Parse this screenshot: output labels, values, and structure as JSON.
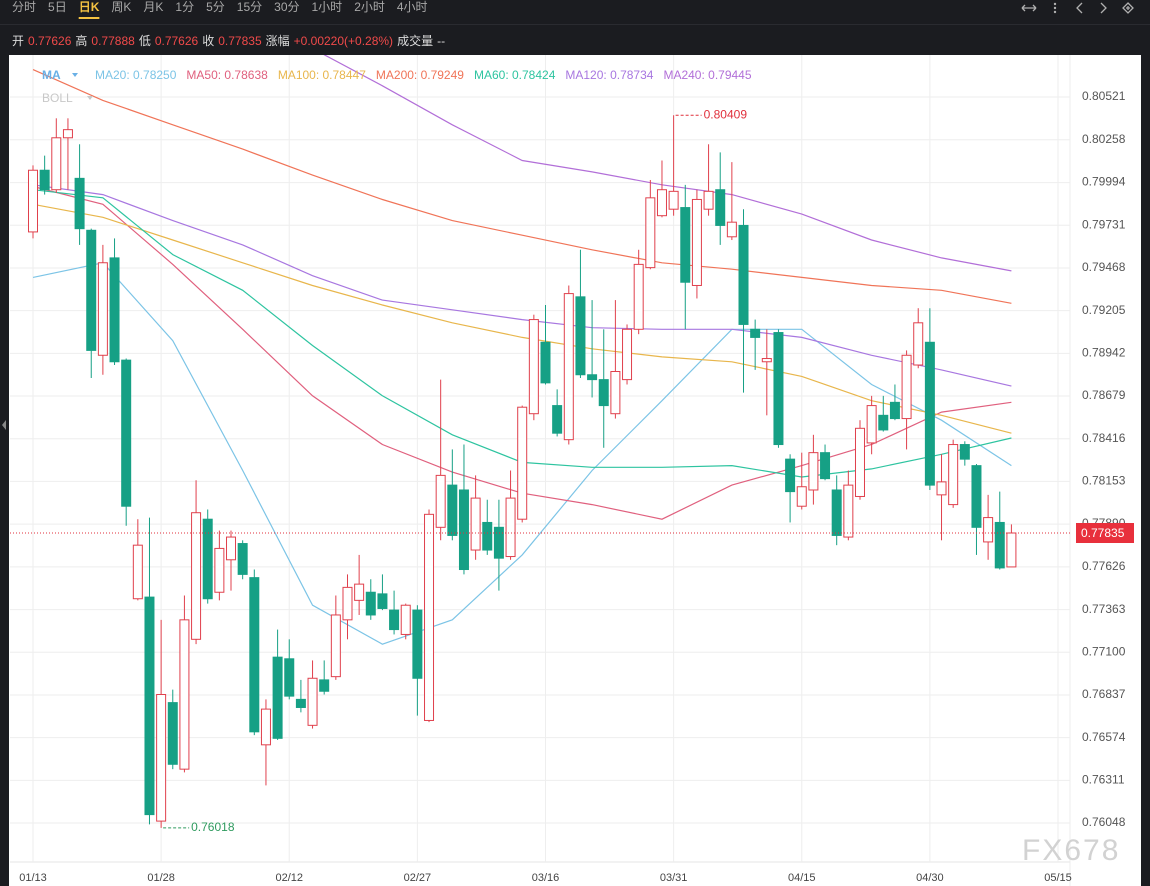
{
  "toolbar": [
    "分时",
    "5日",
    "日K",
    "周K",
    "月K",
    "1分",
    "5分",
    "15分",
    "30分",
    "1小时",
    "2小时",
    "4小时"
  ],
  "selected": "日K",
  "quote_labels": {
    "open": "开",
    "high": "高",
    "low": "低",
    "close": "收",
    "change": "涨幅",
    "volume": "成交量"
  },
  "change": "+0.00220(+0.28%)",
  "volume": "--",
  "indicators": [
    "MA",
    "BOLL"
  ],
  "watermark": "FX678",
  "chart_data": {
    "type": "candlestick",
    "up_color": "#e0404c",
    "down_color": "#16a085",
    "grid": true,
    "categories": [
      "01/13",
      null,
      null,
      null,
      null,
      null,
      null,
      null,
      null,
      null,
      null,
      "01/28",
      null,
      null,
      null,
      null,
      null,
      null,
      null,
      null,
      null,
      null,
      "02/12",
      null,
      null,
      null,
      null,
      null,
      null,
      null,
      null,
      null,
      null,
      "02/27",
      null,
      null,
      null,
      null,
      null,
      null,
      null,
      null,
      null,
      null,
      "03/16",
      null,
      null,
      null,
      null,
      null,
      null,
      null,
      null,
      null,
      null,
      "03/31",
      null,
      null,
      null,
      null,
      null,
      null,
      null,
      null,
      null,
      null,
      "04/15",
      null,
      null,
      null,
      null,
      null,
      null,
      null,
      null,
      null,
      null,
      "04/30",
      null,
      null,
      null,
      null,
      null,
      null,
      null,
      null,
      null,
      null,
      "05/15"
    ],
    "open": [
      0.7969,
      0.8007,
      0.7995,
      0.8027,
      0.8002,
      0.797,
      0.7893,
      0.7953,
      0.789,
      0.7743,
      0.7744,
      0.7606,
      0.7679,
      0.7638,
      0.7718,
      0.7792,
      0.7747,
      0.7767,
      0.7777,
      0.7756,
      0.7653,
      0.7707,
      0.7706,
      0.7681,
      0.7665,
      0.7693,
      0.7695,
      0.773,
      0.7742,
      0.7747,
      0.7746,
      0.7736,
      0.7721,
      0.7736,
      0.7668,
      0.7787,
      0.7813,
      0.781,
      0.7773,
      0.779,
      0.7787,
      0.7769,
      0.7792,
      0.7857,
      0.7901,
      0.7862,
      0.7841,
      0.7929,
      0.7881,
      0.7878,
      0.7857,
      0.7878,
      0.7909,
      0.7947,
      0.7979,
      0.7983,
      0.7984,
      0.7936,
      0.7983,
      0.7995,
      0.7966,
      0.7973,
      0.7909,
      0.7889,
      0.7907,
      0.7829,
      0.78,
      0.781,
      0.7833,
      0.781,
      0.7781,
      0.7806,
      0.7839,
      0.7856,
      0.7864,
      0.7854,
      0.7887,
      0.7901,
      0.7807,
      0.7801,
      0.7838,
      0.7825,
      0.7778,
      0.779,
      0.77626,
      null,
      null,
      null,
      null
    ],
    "high": [
      0.801,
      0.8016,
      0.8039,
      0.8039,
      0.8023,
      0.7971,
      0.7961,
      0.7965,
      0.7891,
      0.7792,
      0.7793,
      0.773,
      0.7687,
      0.7745,
      0.7816,
      0.7798,
      0.7785,
      0.7785,
      0.7779,
      0.7761,
      0.7681,
      0.7724,
      0.7718,
      0.7693,
      0.7705,
      0.7705,
      0.7745,
      0.7758,
      0.777,
      0.7755,
      0.7758,
      0.7748,
      0.774,
      0.7739,
      0.7798,
      0.7878,
      0.7835,
      0.7838,
      0.7819,
      0.7804,
      0.7804,
      0.7822,
      0.7862,
      0.7918,
      0.7924,
      0.7872,
      0.7936,
      0.7958,
      0.7927,
      0.7909,
      0.7927,
      0.7912,
      0.7958,
      0.8001,
      0.8013,
      0.80409,
      0.7998,
      0.7995,
      0.8023,
      0.8018,
      0.8012,
      0.7983,
      0.7915,
      0.7909,
      0.7909,
      0.7832,
      0.7833,
      0.7844,
      0.7838,
      0.7819,
      0.7822,
      0.7853,
      0.7868,
      0.7868,
      0.7875,
      0.7896,
      0.7922,
      0.7922,
      0.7832,
      0.7841,
      0.784,
      0.7826,
      0.7807,
      0.7809,
      0.77888,
      null,
      null,
      null,
      null
    ],
    "low": [
      0.7965,
      0.7992,
      0.7993,
      0.7995,
      0.7961,
      0.7879,
      0.7881,
      0.7887,
      0.7788,
      0.7742,
      0.7604,
      0.76018,
      0.7638,
      0.7636,
      0.7715,
      0.774,
      0.7742,
      0.7748,
      0.7755,
      0.7659,
      0.7628,
      0.7656,
      0.7681,
      0.7673,
      0.7663,
      0.7684,
      0.7693,
      0.7718,
      0.7733,
      0.773,
      0.7736,
      0.7721,
      0.7718,
      0.7671,
      0.7667,
      0.7779,
      0.7779,
      0.7758,
      0.7767,
      0.777,
      0.7748,
      0.7767,
      0.779,
      0.7853,
      0.7875,
      0.7843,
      0.7838,
      0.7879,
      0.7867,
      0.7836,
      0.7854,
      0.7875,
      0.7906,
      0.7946,
      0.7978,
      0.7979,
      0.7909,
      0.7928,
      0.7979,
      0.7961,
      0.7964,
      0.787,
      0.7884,
      0.7856,
      0.7836,
      0.779,
      0.7798,
      0.7801,
      0.7816,
      0.7776,
      0.7779,
      0.7804,
      0.7832,
      0.7846,
      0.7853,
      0.7835,
      0.7885,
      0.781,
      0.7779,
      0.7799,
      0.7825,
      0.777,
      0.7767,
      0.7761,
      0.77626,
      null,
      null,
      null,
      null
    ],
    "close": [
      0.8007,
      0.7995,
      0.8027,
      0.8032,
      0.7971,
      0.7896,
      0.795,
      0.7889,
      0.78,
      0.7776,
      0.761,
      0.7684,
      0.7641,
      0.773,
      0.7796,
      0.7743,
      0.7774,
      0.7781,
      0.7758,
      0.7661,
      0.7675,
      0.7657,
      0.7683,
      0.7676,
      0.7694,
      0.7686,
      0.7733,
      0.775,
      0.7752,
      0.7733,
      0.7737,
      0.7724,
      0.7739,
      0.7694,
      0.7795,
      0.7819,
      0.7782,
      0.7761,
      0.7805,
      0.7773,
      0.7768,
      0.7805,
      0.7861,
      0.7915,
      0.7876,
      0.7845,
      0.7931,
      0.7881,
      0.7878,
      0.7862,
      0.7883,
      0.7909,
      0.7949,
      0.799,
      0.7995,
      0.7994,
      0.7938,
      0.7989,
      0.7994,
      0.7973,
      0.7975,
      0.7912,
      0.7904,
      0.7891,
      0.7838,
      0.7809,
      0.7812,
      0.7833,
      0.7817,
      0.7782,
      0.7813,
      0.7848,
      0.7862,
      0.7847,
      0.7854,
      0.7893,
      0.7913,
      0.7813,
      0.7815,
      0.7838,
      0.7829,
      0.7787,
      0.7793,
      0.7762,
      0.77835,
      null,
      null,
      null,
      null
    ],
    "series": [
      {
        "name": "MA20: 0.78250",
        "color": "#7cc4e6",
        "x": [
          0,
          6,
          12,
          18,
          24,
          30,
          36,
          42,
          48,
          54,
          60,
          66,
          72,
          78,
          84
        ],
        "values": [
          0.7941,
          0.795,
          0.7902,
          0.7822,
          0.7739,
          0.7715,
          0.773,
          0.777,
          0.7822,
          0.7865,
          0.7909,
          0.7909,
          0.7875,
          0.7853,
          0.7825
        ]
      },
      {
        "name": "MA50: 0.78638",
        "color": "#e0607e",
        "x": [
          0,
          6,
          12,
          18,
          24,
          30,
          36,
          42,
          48,
          54,
          60,
          66,
          72,
          78,
          84
        ],
        "values": [
          0.7997,
          0.7986,
          0.7949,
          0.7909,
          0.7868,
          0.7838,
          0.7821,
          0.7808,
          0.7801,
          0.7792,
          0.7813,
          0.7825,
          0.7838,
          0.7858,
          0.7864
        ]
      },
      {
        "name": "MA100: 0.78447",
        "color": "#e8b64c",
        "x": [
          0,
          6,
          12,
          18,
          24,
          30,
          36,
          42,
          48,
          54,
          60,
          66,
          72,
          78,
          84
        ],
        "values": [
          0.7986,
          0.7978,
          0.7964,
          0.795,
          0.7936,
          0.7924,
          0.7913,
          0.7904,
          0.7897,
          0.7892,
          0.7889,
          0.788,
          0.7865,
          0.7856,
          0.7845
        ]
      },
      {
        "name": "MA200: 0.79249",
        "color": "#f07458",
        "x": [
          0,
          6,
          12,
          18,
          24,
          30,
          36,
          42,
          48,
          54,
          60,
          66,
          72,
          78,
          84
        ],
        "values": [
          0.8069,
          0.805,
          0.8035,
          0.802,
          0.8004,
          0.7989,
          0.7976,
          0.7967,
          0.7958,
          0.795,
          0.7946,
          0.7941,
          0.7936,
          0.7933,
          0.7925
        ]
      },
      {
        "name": "MA60: 0.78424",
        "color": "#2ec4a0",
        "x": [
          0,
          6,
          12,
          18,
          24,
          30,
          36,
          42,
          48,
          54,
          60,
          66,
          72,
          78,
          84
        ],
        "values": [
          0.7995,
          0.799,
          0.7955,
          0.7933,
          0.7899,
          0.7868,
          0.7844,
          0.7827,
          0.7824,
          0.7824,
          0.7825,
          0.7818,
          0.7823,
          0.7832,
          0.7842
        ]
      },
      {
        "name": "MA120: 0.78734",
        "color": "#a877e0",
        "x": [
          0,
          6,
          12,
          18,
          24,
          30,
          36,
          42,
          48,
          54,
          60,
          66,
          72,
          78,
          84
        ],
        "values": [
          0.7998,
          0.7992,
          0.7976,
          0.7961,
          0.7942,
          0.7927,
          0.7921,
          0.7915,
          0.791,
          0.7909,
          0.7909,
          0.7904,
          0.7893,
          0.7884,
          0.7874
        ]
      },
      {
        "name": "MA240: 0.79445",
        "color": "#b26fd8",
        "x": [
          24,
          30,
          36,
          42,
          48,
          54,
          60,
          66,
          72,
          78,
          84
        ],
        "values": [
          0.8082,
          0.8059,
          0.8035,
          0.8013,
          0.8006,
          0.7998,
          0.7992,
          0.798,
          0.7964,
          0.7953,
          0.7945
        ]
      }
    ],
    "ylim": [
      0.75808,
      0.8078
    ],
    "yticks": [
      0.80521,
      0.80258,
      0.79994,
      0.79731,
      0.79468,
      0.79205,
      0.78942,
      0.78679,
      0.78416,
      0.78153,
      {
        "value": 0.7789,
        "label": "0.77890"
      },
      0.77626,
      0.77363,
      {
        "value": 0.771,
        "label": "0.77100"
      },
      0.76837,
      0.76574,
      0.76311,
      0.76048
    ]
  }
}
